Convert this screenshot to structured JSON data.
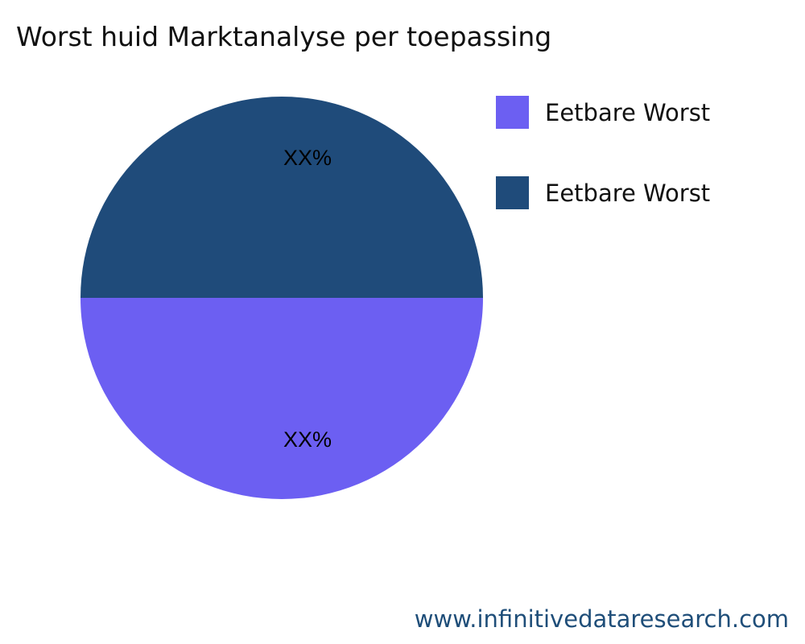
{
  "chart_data": {
    "type": "pie",
    "title": "Worst huid Marktanalyse per toepassing",
    "slices": [
      {
        "name": "Eetbare Worst",
        "value": 50,
        "label": "XX%",
        "color": "#1f4b7a"
      },
      {
        "name": "Eetbare Worst",
        "value": 50,
        "label": "XX%",
        "color": "#6c5ff2"
      }
    ],
    "legend": {
      "placement": "right",
      "items": [
        {
          "label": "Eetbare Worst",
          "color": "#6c5ff2"
        },
        {
          "label": "Eetbare Worst",
          "color": "#1f4b7a"
        }
      ]
    }
  },
  "footer": "www.infinitivedataresearch.com"
}
